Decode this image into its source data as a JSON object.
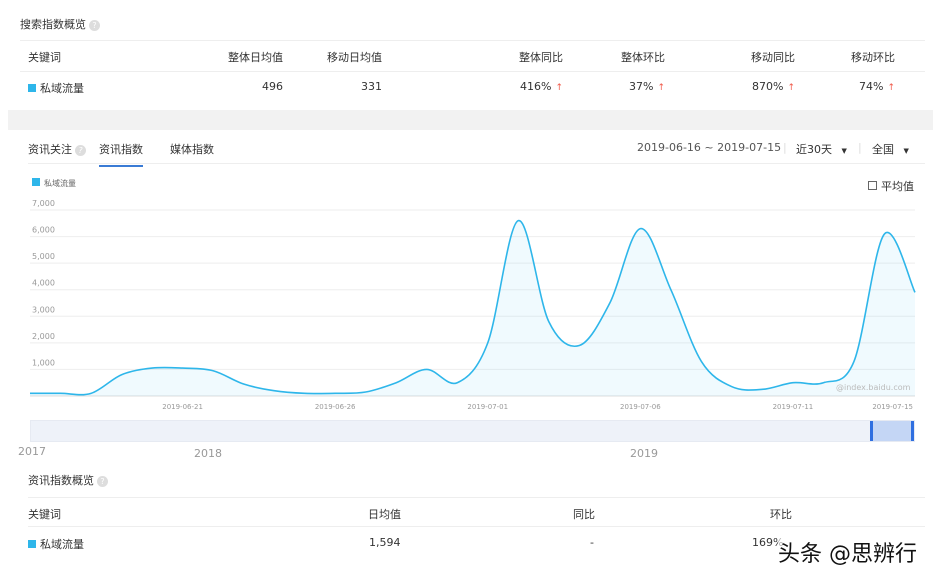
{
  "search_overview": {
    "title": "搜索指数概览",
    "headers": [
      "关键词",
      "整体日均值",
      "移动日均值",
      "整体同比",
      "整体环比",
      "移动同比",
      "移动环比"
    ],
    "row": {
      "keyword": "私域流量",
      "overall_avg": "496",
      "mobile_avg": "331",
      "overall_yoy": "416%",
      "overall_mom": "37%",
      "mobile_yoy": "870%",
      "mobile_mom": "74%"
    },
    "arrow": "↑"
  },
  "news": {
    "label": "资讯关注",
    "tabs": [
      "资讯指数",
      "媒体指数"
    ],
    "active_tab": 0,
    "date_range": "2019-06-16 ~ 2019-07-15",
    "period": "近30天",
    "region": "全国",
    "avg_checkbox": "平均值",
    "watermark": "@index.baidu.com",
    "brush_years": [
      "2017",
      "2018",
      "2019"
    ]
  },
  "chart_data": {
    "type": "area",
    "series": [
      {
        "name": "私域流量",
        "color": "#2eb6ea",
        "values": [
          100,
          100,
          100,
          800,
          1050,
          1050,
          950,
          450,
          200,
          100,
          100,
          150,
          500,
          1000,
          500,
          2000,
          6600,
          2800,
          1900,
          3500,
          6300,
          4000,
          1300,
          350,
          250,
          500,
          500,
          1300,
          6100,
          3900
        ]
      }
    ],
    "start_date": "2019-06-16",
    "end_date": "2019-07-15",
    "y_ticks": [
      "1,000",
      "2,000",
      "3,000",
      "4,000",
      "5,000",
      "6,000",
      "7,000"
    ],
    "ylim": [
      0,
      7000
    ],
    "x_ticks": [
      "2019-06-21",
      "2019-06-26",
      "2019-07-01",
      "2019-07-06",
      "2019-07-11",
      "2019-07-15"
    ],
    "legend": "top-left",
    "grid": true
  },
  "news_overview": {
    "title": "资讯指数概览",
    "headers": [
      "关键词",
      "日均值",
      "同比",
      "环比"
    ],
    "row": {
      "keyword": "私域流量",
      "avg": "1,594",
      "yoy": "-",
      "mom": "169%"
    }
  },
  "overlay": "头条 @思辨行"
}
